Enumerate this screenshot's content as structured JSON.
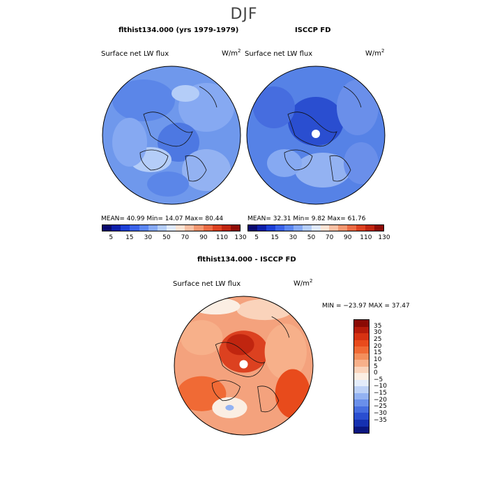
{
  "title": "DJF",
  "panels": {
    "model": {
      "title": "flthist134.000 (yrs 1979-1979)",
      "variable": "Surface net LW flux",
      "units_base": "W/m",
      "units_exp": "2",
      "stats": "MEAN=  40.99  Min=  14.07  Max=  80.44"
    },
    "obs": {
      "title": "ISCCP FD",
      "variable": "Surface net LW flux",
      "units_base": "W/m",
      "units_exp": "2",
      "stats": "MEAN=  32.31  Min=   9.82  Max=  61.76"
    },
    "diff": {
      "title": "flthist134.000 - ISCCP FD",
      "variable": "Surface net LW flux",
      "units_base": "W/m",
      "units_exp": "2",
      "stats": "MIN = −23.97 MAX =  37.47"
    }
  },
  "colorbar_top": {
    "ticks": [
      "5",
      "15",
      "30",
      "50",
      "70",
      "90",
      "110",
      "130"
    ],
    "colors": [
      "#08086e",
      "#0b1ea8",
      "#1c3fd6",
      "#3a62e8",
      "#5b86f0",
      "#86a9f5",
      "#b4cdf8",
      "#dfe9fb",
      "#fbe3d4",
      "#f8bfa3",
      "#f2966f",
      "#ea6a43",
      "#dc4120",
      "#c0250f",
      "#8f0c06"
    ]
  },
  "colorbar_diff": {
    "ticks": [
      "35",
      "30",
      "25",
      "20",
      "15",
      "10",
      "5",
      "0",
      "−5",
      "−10",
      "−15",
      "−20",
      "−25",
      "−30",
      "−35"
    ],
    "colors": [
      "#8a0a04",
      "#b51b0a",
      "#d63212",
      "#e84b1c",
      "#f06a35",
      "#f48f5c",
      "#f7b08a",
      "#fad3bb",
      "#fbeee3",
      "#e3ecfb",
      "#bdd1f7",
      "#93b2f2",
      "#6a8fea",
      "#466ddf",
      "#2a4ed0",
      "#1530b0",
      "#0a1680"
    ]
  },
  "maps": {
    "model_fill": "#6f98ec",
    "obs_fill": "#5682e6",
    "diff_fill": "#f4a27d"
  }
}
